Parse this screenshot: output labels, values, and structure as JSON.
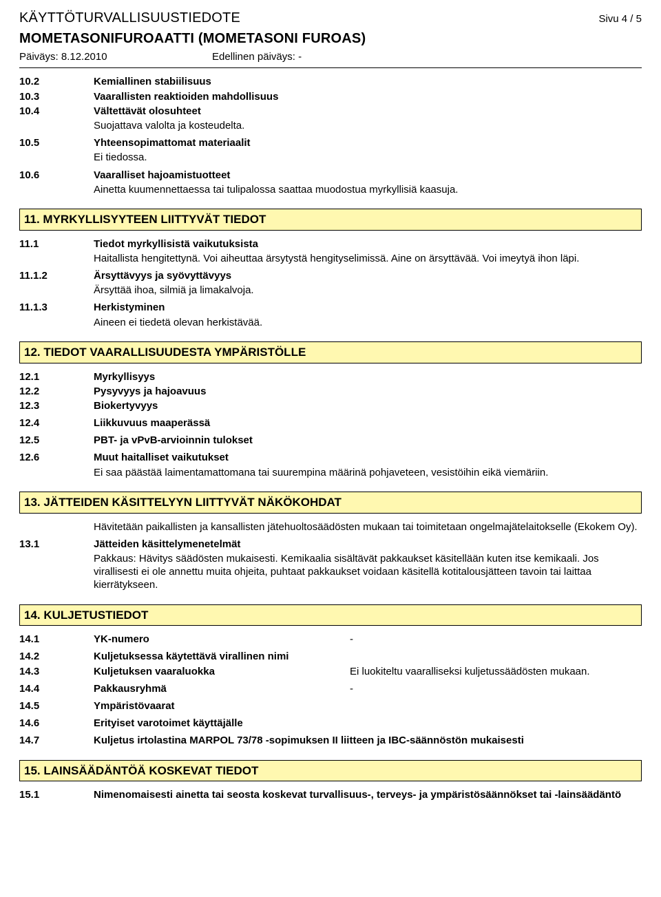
{
  "header": {
    "title": "KÄYTTÖTURVALLISUUSTIEDOTE",
    "page": "Sivu 4 / 5",
    "subtitle": "MOMETASONIFUROAATTI (MOMETASONI FUROAS)",
    "date_label": "Päiväys: 8.12.2010",
    "prev_label": "Edellinen päiväys: -"
  },
  "pre10": {
    "r1_num": "10.2",
    "r1_label": "Kemiallinen stabiilisuus",
    "r2_num": "10.3",
    "r2_label": "Vaarallisten reaktioiden mahdollisuus",
    "r3_num": "10.4",
    "r3_label": "Vältettävät olosuhteet",
    "r3_body": "Suojattava valolta ja kosteudelta.",
    "r4_num": "10.5",
    "r4_label": "Yhteensopimattomat materiaalit",
    "r4_body": "Ei tiedossa.",
    "r5_num": "10.6",
    "r5_label": "Vaaralliset hajoamistuotteet",
    "r5_body": "Ainetta kuumennettaessa tai tulipalossa saattaa muodostua myrkyllisiä kaasuja."
  },
  "s11": {
    "bar": "11. MYRKYLLISYYTEEN LIITTYVÄT TIEDOT",
    "r1_num": "11.1",
    "r1_label": "Tiedot myrkyllisistä vaikutuksista",
    "r1_body": "Haitallista hengitettynä. Voi aiheuttaa ärsytystä hengityselimissä. Aine on ärsyttävää. Voi imeytyä ihon läpi.",
    "r2_num": "11.1.2",
    "r2_label": "Ärsyttävyys ja syövyttävyys",
    "r2_body": "Ärsyttää ihoa, silmiä ja limakalvoja.",
    "r3_num": "11.1.3",
    "r3_label": "Herkistyminen",
    "r3_body": "Aineen ei tiedetä olevan herkistävää."
  },
  "s12": {
    "bar": "12. TIEDOT VAARALLISUUDESTA YMPÄRISTÖLLE",
    "r1_num": "12.1",
    "r1_label": "Myrkyllisyys",
    "r2_num": "12.2",
    "r2_label": "Pysyvyys ja hajoavuus",
    "r3_num": "12.3",
    "r3_label": "Biokertyvyys",
    "r4_num": "12.4",
    "r4_label": "Liikkuvuus maaperässä",
    "r5_num": "12.5",
    "r5_label": "PBT- ja vPvB-arvioinnin tulokset",
    "r6_num": "12.6",
    "r6_label": "Muut haitalliset vaikutukset",
    "r6_body": "Ei saa päästää laimentamattomana tai suurempina määrinä pohjaveteen, vesistöihin eikä viemäriin."
  },
  "s13": {
    "bar": "13. JÄTTEIDEN KÄSITTELYYN LIITTYVÄT NÄKÖKOHDAT",
    "intro": "Hävitetään paikallisten ja kansallisten jätehuoltosäädösten mukaan tai toimitetaan ongelmajätelaitokselle (Ekokem Oy).",
    "r1_num": "13.1",
    "r1_label": "Jätteiden käsittelymenetelmät",
    "r1_body": "Pakkaus: Hävitys säädösten mukaisesti. Kemikaalia sisältävät pakkaukset käsitellään kuten itse kemikaali. Jos virallisesti ei ole annettu muita ohjeita, puhtaat pakkaukset voidaan käsitellä kotitalousjätteen tavoin tai laittaa kierrätykseen."
  },
  "s14": {
    "bar": "14. KULJETUSTIEDOT",
    "r1_num": "14.1",
    "r1_label": "YK-numero",
    "r1_val": "-",
    "r2_num": "14.2",
    "r2_label": "Kuljetuksessa käytettävä virallinen nimi",
    "r3_num": "14.3",
    "r3_label": "Kuljetuksen vaaraluokka",
    "r3_val": "Ei luokiteltu vaaralliseksi kuljetussäädösten mukaan.",
    "r4_num": "14.4",
    "r4_label": "Pakkausryhmä",
    "r4_val": "-",
    "r5_num": "14.5",
    "r5_label": "Ympäristövaarat",
    "r6_num": "14.6",
    "r6_label": "Erityiset varotoimet käyttäjälle",
    "r7_num": "14.7",
    "r7_label": "Kuljetus irtolastina MARPOL 73/78 -sopimuksen II liitteen ja IBC-säännöstön mukaisesti"
  },
  "s15": {
    "bar": "15. LAINSÄÄDÄNTÖÄ KOSKEVAT TIEDOT",
    "r1_num": "15.1",
    "r1_label": "Nimenomaisesti ainetta tai seosta koskevat turvallisuus-, terveys- ja ympäristösäännökset tai -lainsäädäntö"
  },
  "style": {
    "section_bg": "#fff8b0",
    "section_border": "#000000",
    "text_color": "#000000",
    "page_bg": "#ffffff",
    "base_fontsize": 15,
    "title_fontsize": 20,
    "bar_fontsize": 17
  }
}
